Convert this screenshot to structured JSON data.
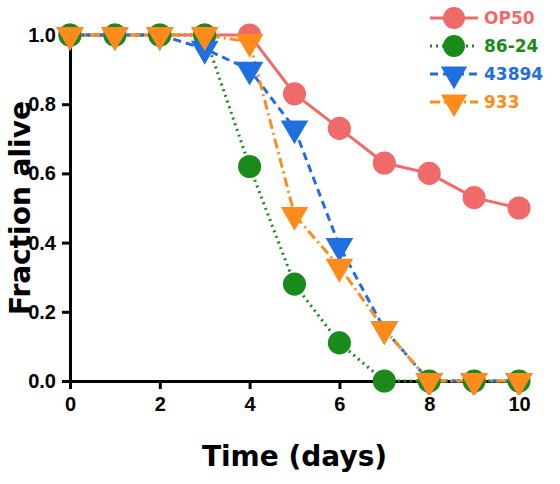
{
  "chart_data": {
    "type": "line",
    "x_label": "Time (days)",
    "y_label": "Fraction alive",
    "x": [
      0,
      1,
      2,
      3,
      4,
      5,
      6,
      7,
      8,
      9,
      10
    ],
    "xlim": [
      0,
      10
    ],
    "xticks": [
      0,
      2,
      4,
      6,
      8,
      10
    ],
    "ylim": [
      0,
      1
    ],
    "yticks": [
      {
        "value": 0,
        "label": "0.0"
      },
      0.2,
      0.4,
      0.6,
      0.8,
      {
        "value": 1,
        "label": "1.0"
      }
    ],
    "grid": false,
    "legend": "top-right",
    "series": [
      {
        "name": "OP50",
        "color": "#f06a6a",
        "marker": "circle",
        "line_style": "solid",
        "values": [
          1,
          1,
          1,
          1,
          1,
          0.83,
          0.73,
          0.63,
          0.6,
          0.53,
          0.5
        ]
      },
      {
        "name": "86-24",
        "color": "#1a8a1a",
        "marker": "circle",
        "line_style": "dotted",
        "values": [
          1,
          1,
          1,
          1,
          0.62,
          0.28,
          0.11,
          0,
          0,
          0,
          0
        ]
      },
      {
        "name": "43894",
        "color": "#1f6fdf",
        "marker": "triangle-down",
        "line_style": "dashed",
        "values": [
          1,
          1,
          1,
          0.96,
          0.9,
          0.73,
          0.39,
          0.15,
          0,
          0,
          0
        ]
      },
      {
        "name": "933",
        "color": "#ff8c1a",
        "marker": "triangle-down",
        "line_style": "dashdot",
        "values": [
          1,
          1,
          1,
          1,
          0.98,
          0.48,
          0.33,
          0.15,
          0,
          0,
          0
        ]
      }
    ]
  }
}
